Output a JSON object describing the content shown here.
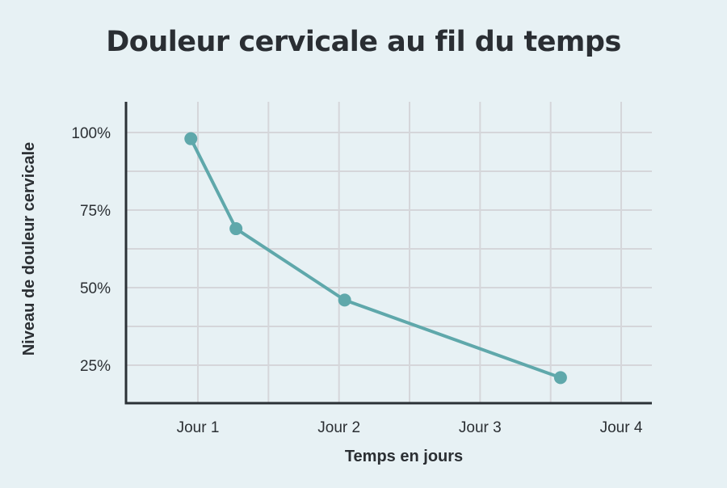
{
  "title": "Douleur cervicale au fil du temps",
  "colors": {
    "background": "#e7f1f4",
    "line": "#5fa8ab",
    "grid": "#d5d6da",
    "axis": "#2b3136",
    "text": "#2b2f33"
  },
  "chart_data": {
    "type": "line",
    "title": "Douleur cervicale au fil du temps",
    "xlabel": "Temps en jours",
    "ylabel": "Niveau de douleur cervicale",
    "x_tick_labels": [
      "Jour 1",
      "Jour 2",
      "Jour 3",
      "Jour 4"
    ],
    "y_tick_labels": [
      "25%",
      "50%",
      "75%",
      "100%"
    ],
    "xlim": [
      0.54,
      4.22
    ],
    "ylim": [
      15,
      110
    ],
    "grid": true,
    "legend": null,
    "series": [
      {
        "name": "Niveau de douleur cervicale",
        "x": [
          0.95,
          1.27,
          2.04,
          3.57
        ],
        "values": [
          98,
          69,
          46,
          21
        ],
        "marker": "circle"
      }
    ]
  }
}
